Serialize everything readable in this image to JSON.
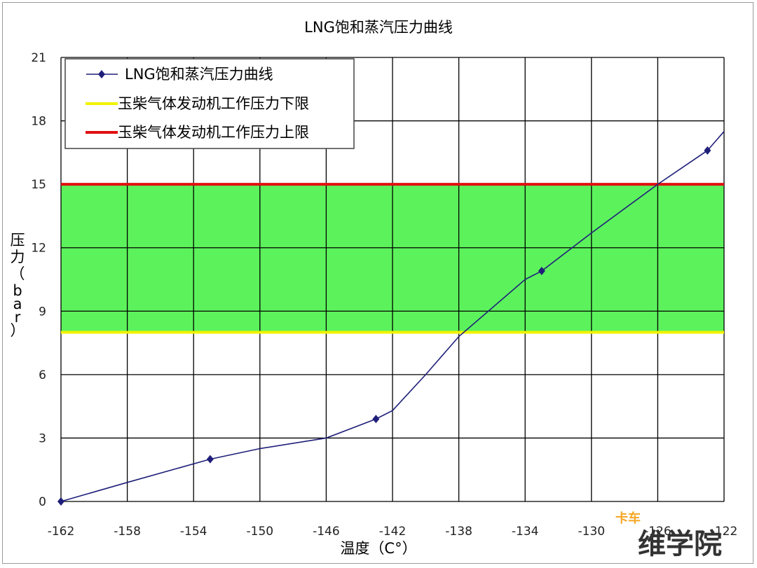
{
  "chart_data": {
    "type": "line",
    "title": "LNG饱和蒸汽压力曲线",
    "xlabel": "温度（C°）",
    "ylabel": "压力（bar）",
    "xlim": [
      -162,
      -122
    ],
    "ylim": [
      0,
      21
    ],
    "x_ticks": [
      "-162",
      "-158",
      "-154",
      "-150",
      "-146",
      "-142",
      "-138",
      "-134",
      "-130",
      "-126",
      "-122"
    ],
    "y_ticks": [
      "0",
      "3",
      "6",
      "9",
      "12",
      "15",
      "18",
      "21"
    ],
    "grid": true,
    "legend_position": "top-left",
    "series": [
      {
        "name": "LNG饱和蒸汽压力曲线",
        "color": "#1f1f7a",
        "marker": "diamond",
        "x": [
          -162,
          -158,
          -153,
          -150,
          -146,
          -143,
          -142,
          -140,
          -138,
          -134,
          -133,
          -130,
          -126,
          -123,
          -122
        ],
        "y": [
          0,
          0.9,
          2.0,
          2.5,
          3.0,
          3.9,
          4.3,
          6.0,
          7.8,
          10.5,
          10.9,
          12.7,
          15.0,
          16.6,
          17.5
        ],
        "markers_at": [
          -162,
          -153,
          -143,
          -133,
          -123
        ]
      },
      {
        "name": "玉柴气体发动机工作压力下限",
        "color": "#f2f200",
        "type": "hline",
        "y": 8
      },
      {
        "name": "玉柴气体发动机工作压力上限",
        "color": "#e01010",
        "type": "hline",
        "y": 15
      }
    ],
    "band": {
      "from": 8,
      "to": 15,
      "color": "#5cf25c"
    }
  },
  "watermark": {
    "small": "卡车",
    "big": "维学院"
  }
}
